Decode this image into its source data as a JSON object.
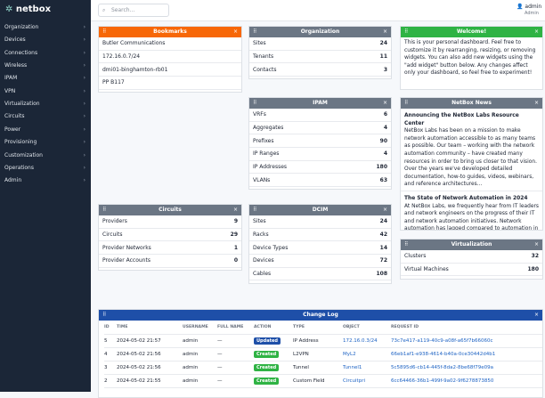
{
  "brand": "netbox",
  "header": {
    "search_placeholder": "Search...",
    "user": "admin",
    "role": "Admin"
  },
  "nav": [
    "Organization",
    "Devices",
    "Connections",
    "Wireless",
    "IPAM",
    "VPN",
    "Virtualization",
    "Circuits",
    "Power",
    "Provisioning",
    "Customization",
    "Operations",
    "Admin"
  ],
  "bookmarks": {
    "title": "Bookmarks",
    "items": [
      "Butler Communications",
      "172.16.0.7/24",
      "dmi01-binghamton-rb01",
      "PP B117"
    ]
  },
  "welcome": {
    "title": "Welcome!",
    "text": "This is your personal dashboard. Feel free to customize it by rearranging, resizing, or removing widgets. You can also add new widgets using the \"add widget\" button below. Any changes affect only your dashboard, so feel free to experiment!"
  },
  "widgets": [
    {
      "title": "Organization",
      "rows": [
        {
          "label": "Sites",
          "count": 24
        },
        {
          "label": "Tenants",
          "count": 11
        },
        {
          "label": "Contacts",
          "count": 3
        }
      ]
    },
    {
      "title": "IPAM",
      "rows": [
        {
          "label": "VRFs",
          "count": 6
        },
        {
          "label": "Aggregates",
          "count": 4
        },
        {
          "label": "Prefixes",
          "count": 90
        },
        {
          "label": "IP Ranges",
          "count": 4
        },
        {
          "label": "IP Addresses",
          "count": 180
        },
        {
          "label": "VLANs",
          "count": 63
        }
      ]
    },
    {
      "title": "Circuits",
      "rows": [
        {
          "label": "Providers",
          "count": 9
        },
        {
          "label": "Circuits",
          "count": 29
        },
        {
          "label": "Provider Networks",
          "count": 1
        },
        {
          "label": "Provider Accounts",
          "count": 0
        }
      ]
    },
    {
      "title": "DCIM",
      "rows": [
        {
          "label": "Sites",
          "count": 24
        },
        {
          "label": "Racks",
          "count": 42
        },
        {
          "label": "Device Types",
          "count": 14
        },
        {
          "label": "Devices",
          "count": 72
        },
        {
          "label": "Cables",
          "count": 108
        }
      ]
    },
    {
      "title": "Virtualization",
      "rows": [
        {
          "label": "Clusters",
          "count": 32
        },
        {
          "label": "Virtual Machines",
          "count": 180
        }
      ]
    }
  ],
  "news": {
    "title": "NetBox News",
    "articles": [
      {
        "title": "Announcing the NetBox Labs Resource Center",
        "text": "NetBox Labs has been on a mission to make network automation accessible to as many teams as possible. Our team – working with the network automation community – have created many resources in order to bring us closer to that vision. Over the years we've developed detailed documentation, how-to guides, videos, webinars, and reference architectures..."
      },
      {
        "title": "The State of Network Automation in 2024",
        "text": "At NetBox Labs, we frequently hear from IT leaders and network engineers on the progress of their IT and network automation initiatives. Network automation has lagged compared to automation in other areas of IT. We often hear that \"keep the lights on\" work prevents network engineers and DCIM from progressing their network automation strategies."
      }
    ]
  },
  "changelog": {
    "title": "Change Log",
    "columns": [
      "ID",
      "TIME",
      "USERNAME",
      "FULL NAME",
      "ACTION",
      "TYPE",
      "OBJECT",
      "REQUEST ID"
    ],
    "rows": [
      [
        "5",
        "2024-05-02 21:57",
        "admin",
        "—",
        "Updated",
        "IP Address",
        "172.16.0.3/24",
        "73c7e417-a119-40c9-a08f-a65f7b66060c"
      ],
      [
        "4",
        "2024-05-02 21:56",
        "admin",
        "—",
        "Created",
        "L2VPN",
        "MyL2",
        "66eb1af1-e938-4614-b40a-0ce30442d4b1"
      ],
      [
        "3",
        "2024-05-02 21:56",
        "admin",
        "—",
        "Created",
        "Tunnel",
        "Tunnel1",
        "5c5895d6-cb14-445f-8da2-8be68f79e09a"
      ],
      [
        "2",
        "2024-05-02 21:55",
        "admin",
        "—",
        "Created",
        "Custom Field",
        "Circuitpri",
        "6cc64466-36b1-499f-9a02-9f6278873850"
      ]
    ]
  }
}
